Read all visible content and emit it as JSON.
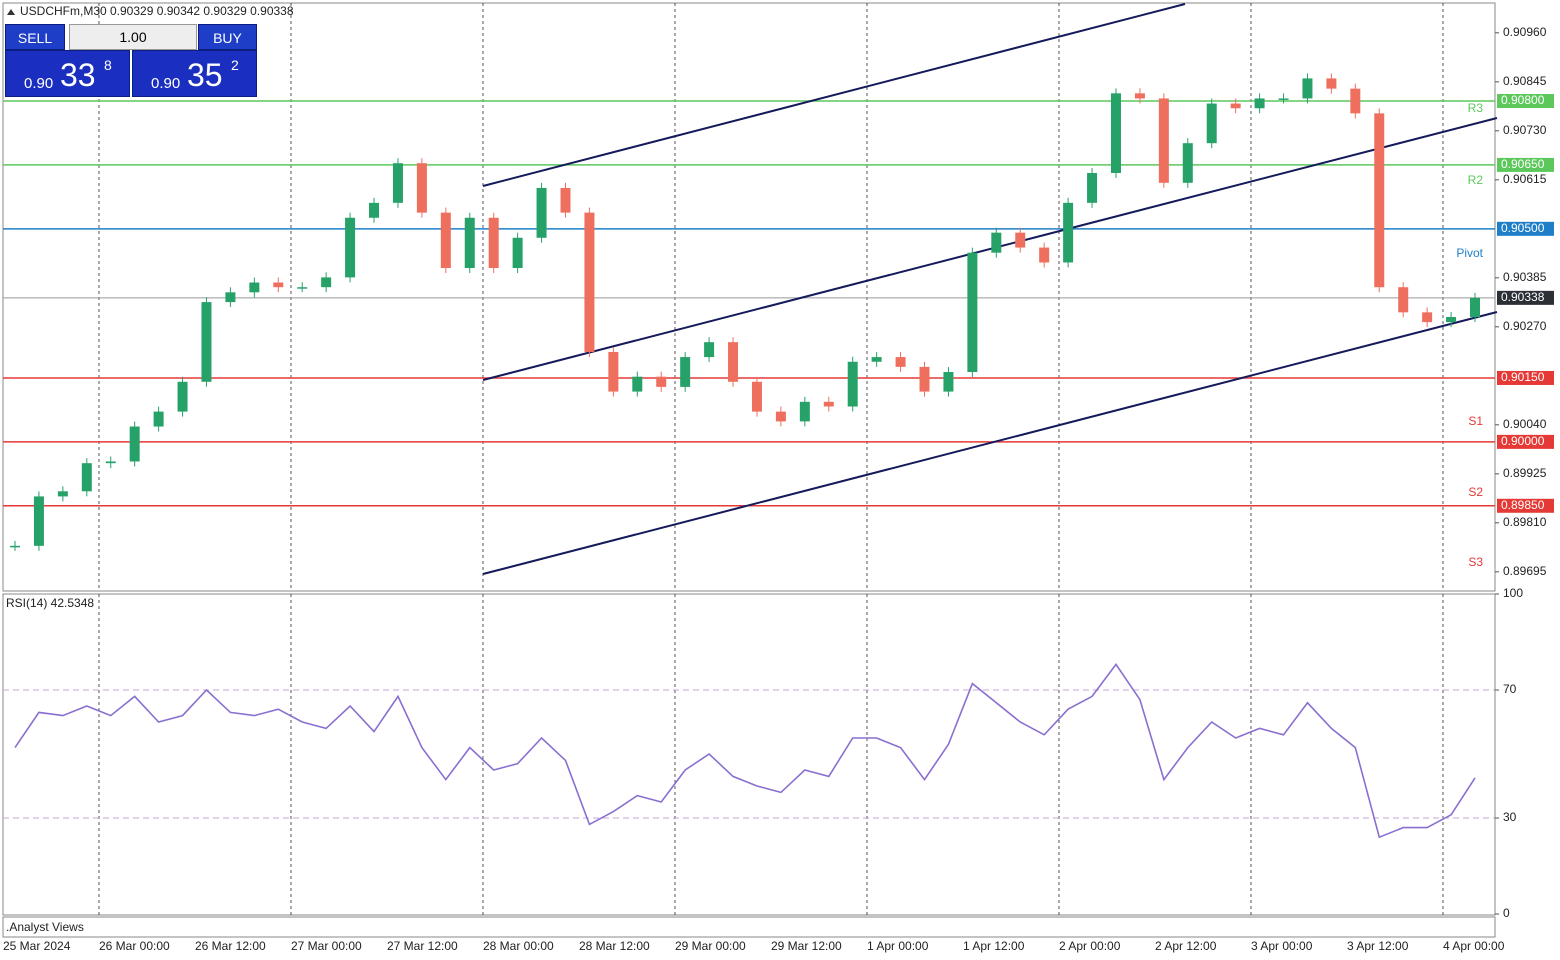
{
  "header": {
    "symbol": "USDCHFm,M30",
    "ohlc": "0.90329 0.90342 0.90329 0.90338"
  },
  "trade_panel": {
    "sell": "SELL",
    "volume": "1.00",
    "buy": "BUY",
    "bid": {
      "big": "0.90",
      "pips": "33",
      "point": "8"
    },
    "ask": {
      "big": "0.90",
      "pips": "35",
      "point": "2"
    }
  },
  "chart_data": [
    {
      "type": "candlestick",
      "close": [
        0.89756,
        0.89872,
        0.89884,
        0.8995,
        0.89954,
        0.90036,
        0.90071,
        0.90141,
        0.90328,
        0.90351,
        0.90374,
        0.90363,
        0.90363,
        0.90386,
        0.90526,
        0.90561,
        0.90654,
        0.90538,
        0.90408,
        0.90526,
        0.90408,
        0.90479,
        0.90596,
        0.90538,
        0.90211,
        0.90118,
        0.90153,
        0.90129,
        0.90199,
        0.90234,
        0.90141,
        0.90071,
        0.90048,
        0.90094,
        0.90083,
        0.90188,
        0.90199,
        0.90176,
        0.90118,
        0.90164,
        0.90444,
        0.90491,
        0.90456,
        0.90421,
        0.90561,
        0.90631,
        0.90818,
        0.90806,
        0.90608,
        0.90701,
        0.90794,
        0.90783,
        0.90806,
        0.90806,
        0.90853,
        0.90829,
        0.90771,
        0.90363,
        0.90304,
        0.90281,
        0.90293,
        0.90338
      ],
      "colors": {
        "up": "#26a269",
        "down": "#ef6f5f"
      },
      "ylim": [
        0.8965,
        0.9103
      ],
      "yticks": [
        {
          "value": 0.9096,
          "label": "0.90960"
        },
        {
          "value": 0.90845,
          "label": "0.90845"
        },
        {
          "value": 0.9073,
          "label": "0.90730"
        },
        {
          "value": 0.90615,
          "label": "0.90615"
        },
        {
          "value": 0.90385,
          "label": "0.90385"
        },
        {
          "value": 0.9027,
          "label": "0.90270"
        },
        {
          "value": 0.9004,
          "label": "0.90040"
        },
        {
          "value": 0.89925,
          "label": "0.89925"
        },
        {
          "value": 0.8981,
          "label": "0.89810"
        },
        {
          "value": 0.89695,
          "label": "0.89695"
        }
      ],
      "levels": [
        {
          "name": "R3",
          "value": 0.908,
          "label": "0.90800",
          "color": "#5cc85c"
        },
        {
          "name": "R2",
          "value": 0.9065,
          "label": "0.90650",
          "color": "#5cc85c"
        },
        {
          "name": "Pivot",
          "value": 0.905,
          "label": "0.90500",
          "color": "#1e7fc8"
        },
        {
          "value": 0.9015,
          "label": "0.90150",
          "color": "#e53935"
        },
        {
          "name": "S1",
          "value": 0.9,
          "label": "0.90000",
          "color": "#e53935"
        },
        {
          "name": "S2",
          "value": 0.8985,
          "label": "0.89850",
          "color": "#e53935"
        },
        {
          "name": "S3",
          "color": "#e53935"
        }
      ],
      "current": {
        "value": 0.90338,
        "label": "0.90338"
      }
    },
    {
      "type": "line",
      "title": "RSI(14) 42.5348",
      "color": "#8a6fd0",
      "values": [
        52,
        63,
        62,
        65,
        62,
        68,
        60,
        62,
        70,
        63,
        62,
        64,
        60,
        58,
        65,
        57,
        68,
        52,
        42,
        52,
        45,
        47,
        55,
        48,
        28,
        32,
        37,
        35,
        45,
        50,
        43,
        40,
        38,
        45,
        43,
        55,
        55,
        52,
        42,
        53,
        72,
        66,
        60,
        56,
        64,
        68,
        78,
        67,
        42,
        52,
        60,
        55,
        58,
        56,
        66,
        58,
        52,
        24,
        27,
        27,
        31,
        42.5348
      ],
      "ylim": [
        0,
        100
      ],
      "yticks": [
        100,
        70,
        30,
        0
      ],
      "levels": [
        70,
        30
      ]
    }
  ],
  "x_labels": [
    "25 Mar 2024",
    "26 Mar 00:00",
    "26 Mar 12:00",
    "27 Mar 00:00",
    "27 Mar 12:00",
    "28 Mar 00:00",
    "28 Mar 12:00",
    "29 Mar 00:00",
    "29 Mar 12:00",
    "1 Apr 00:00",
    "1 Apr 12:00",
    "2 Apr 00:00",
    "2 Apr 12:00",
    "3 Apr 00:00",
    "3 Apr 12:00",
    "4 Apr 00:00"
  ],
  "footer": ".Analyst Views"
}
